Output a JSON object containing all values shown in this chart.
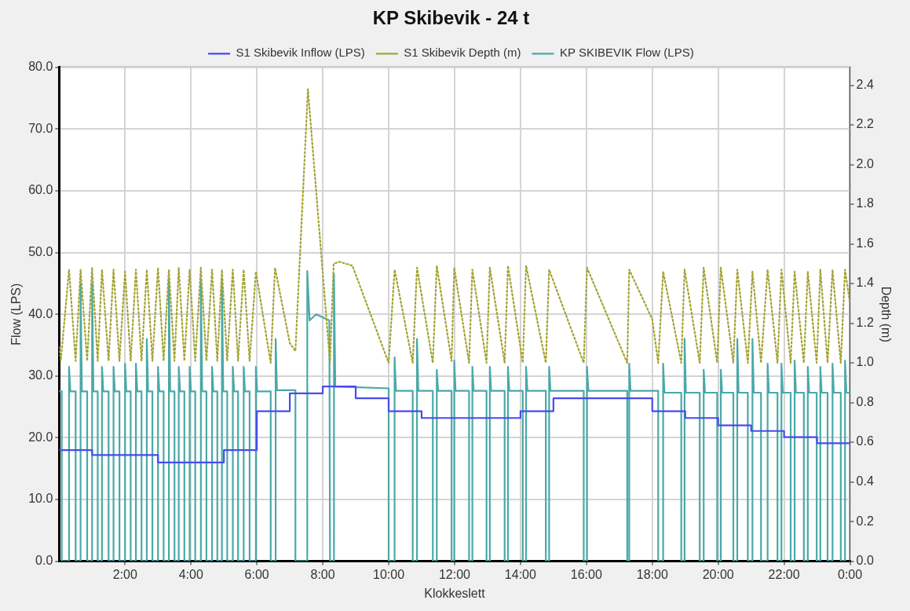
{
  "chart_data": {
    "type": "line",
    "title": "KP Skibevik - 24 t",
    "xlabel": "Klokkeslett",
    "ylabel": "Flow (LPS)",
    "y2label": "Depth (m)",
    "xlim": [
      0,
      24
    ],
    "xticks": [
      {
        "value": 2,
        "label": "2:00"
      },
      {
        "value": 4,
        "label": "4:00"
      },
      {
        "value": 6,
        "label": "6:00"
      },
      {
        "value": 8,
        "label": "8:00"
      },
      {
        "value": 10,
        "label": "10:00"
      },
      {
        "value": 12,
        "label": "12:00"
      },
      {
        "value": 14,
        "label": "14:00"
      },
      {
        "value": 16,
        "label": "16:00"
      },
      {
        "value": 18,
        "label": "18:00"
      },
      {
        "value": 20,
        "label": "20:00"
      },
      {
        "value": 22,
        "label": "22:00"
      },
      {
        "value": 24,
        "label": "0:00"
      }
    ],
    "ylim": [
      0,
      80
    ],
    "yticks": [
      {
        "value": 0,
        "label": "0.0"
      },
      {
        "value": 10,
        "label": "10.0"
      },
      {
        "value": 20,
        "label": "20.0"
      },
      {
        "value": 30,
        "label": "30.0"
      },
      {
        "value": 40,
        "label": "40.0"
      },
      {
        "value": 50,
        "label": "50.0"
      },
      {
        "value": 60,
        "label": "60.0"
      },
      {
        "value": 70,
        "label": "70.0"
      },
      {
        "value": 80,
        "label": "80.0"
      }
    ],
    "y2lim": [
      0,
      2.49
    ],
    "y2ticks": [
      {
        "value": 0,
        "label": "0.0"
      },
      0.2,
      0.4,
      0.6,
      0.8,
      {
        "value": 1,
        "label": "1.0"
      },
      1.2,
      1.4,
      1.6,
      1.8,
      {
        "value": 2,
        "label": "2.0"
      },
      2.2,
      2.4
    ],
    "grid": true,
    "legend": "top",
    "marker": "none",
    "series": [
      {
        "name": "S1 Skibevik Inflow (LPS)",
        "type": "step",
        "color": "#4a4af0",
        "x": [
          0,
          1,
          3,
          5,
          6,
          7,
          8,
          9,
          10,
          11,
          14,
          15,
          18,
          19,
          20,
          21,
          22,
          23,
          24
        ],
        "values": [
          18.0,
          17.2,
          16.0,
          18.0,
          24.3,
          27.2,
          28.3,
          26.4,
          24.3,
          23.2,
          24.3,
          26.4,
          24.3,
          23.2,
          22.0,
          21.1,
          20.1,
          19.1,
          19.1
        ]
      },
      {
        "name": "S1 Skibevik Depth (m)",
        "type": "line",
        "axis": "y2",
        "line_style": "dotted",
        "color": "#a3a335",
        "x": [
          0,
          0.05,
          0.3,
          0.5,
          0.65,
          0.85,
          1.0,
          1.17,
          1.3,
          1.5,
          1.65,
          1.83,
          2.0,
          2.17,
          2.33,
          2.5,
          2.66,
          2.83,
          3.0,
          3.17,
          3.33,
          3.5,
          3.63,
          3.8,
          3.96,
          4.13,
          4.3,
          4.47,
          4.64,
          4.8,
          4.94,
          5.1,
          5.27,
          5.43,
          5.6,
          5.78,
          5.97,
          6.42,
          6.55,
          7.0,
          7.17,
          7.55,
          8.22,
          8.33,
          8.5,
          8.9,
          10.0,
          10.18,
          10.73,
          10.86,
          11.34,
          11.46,
          11.91,
          11.99,
          12.44,
          12.54,
          12.97,
          13.07,
          13.52,
          13.62,
          14.07,
          14.17,
          14.77,
          14.87,
          15.92,
          16.02,
          17.24,
          17.3,
          18.0,
          18.18,
          18.33,
          18.88,
          18.98,
          19.44,
          19.56,
          19.97,
          20.08,
          20.46,
          20.58,
          20.9,
          21.04,
          21.3,
          21.5,
          21.8,
          21.92,
          22.2,
          22.32,
          22.6,
          22.72,
          22.99,
          23.1,
          23.32,
          23.47,
          23.72,
          23.85,
          24
        ],
        "values": [
          1.08,
          1.01,
          1.47,
          1.01,
          1.47,
          1.01,
          1.48,
          1.01,
          1.47,
          1.01,
          1.47,
          1.01,
          1.46,
          1.01,
          1.47,
          1.01,
          1.47,
          1.01,
          1.48,
          1.01,
          1.47,
          1.01,
          1.48,
          1.01,
          1.47,
          1.01,
          1.48,
          1.01,
          1.47,
          1.01,
          1.47,
          1.01,
          1.47,
          1.01,
          1.47,
          1.01,
          1.46,
          1.0,
          1.48,
          1.1,
          1.06,
          2.38,
          1.0,
          1.5,
          1.51,
          1.49,
          1.0,
          1.47,
          1.0,
          1.48,
          1.0,
          1.49,
          1.01,
          1.48,
          1.0,
          1.47,
          1.0,
          1.48,
          1.0,
          1.49,
          1.0,
          1.49,
          1.0,
          1.47,
          1.0,
          1.48,
          1.0,
          1.47,
          1.22,
          1.0,
          1.46,
          1.0,
          1.47,
          1.0,
          1.48,
          1.0,
          1.48,
          1.0,
          1.47,
          1.0,
          1.46,
          1.0,
          1.47,
          1.0,
          1.47,
          1.0,
          1.46,
          1.0,
          1.46,
          1.0,
          1.47,
          1.0,
          1.47,
          1.0,
          1.47,
          1.3
        ]
      },
      {
        "name": "KP SKIBEVIK Flow (LPS)",
        "type": "line",
        "color": "#4aa8a8",
        "x": [
          0,
          0.08,
          0.08,
          0.3,
          0.3,
          0.34,
          0.5,
          0.5,
          0.65,
          0.65,
          0.69,
          0.85,
          0.85,
          1.0,
          1.0,
          1.04,
          1.17,
          1.17,
          1.3,
          1.3,
          1.34,
          1.5,
          1.5,
          1.65,
          1.65,
          1.69,
          1.83,
          1.83,
          2.0,
          2.0,
          2.04,
          2.17,
          2.17,
          2.33,
          2.33,
          2.37,
          2.5,
          2.5,
          2.66,
          2.66,
          2.7,
          2.83,
          2.83,
          3.0,
          3.0,
          3.04,
          3.17,
          3.17,
          3.33,
          3.33,
          3.37,
          3.5,
          3.5,
          3.63,
          3.63,
          3.67,
          3.8,
          3.8,
          3.96,
          3.96,
          4.0,
          4.13,
          4.13,
          4.3,
          4.3,
          4.34,
          4.47,
          4.47,
          4.64,
          4.64,
          4.68,
          4.8,
          4.8,
          4.94,
          4.94,
          4.98,
          5.1,
          5.1,
          5.27,
          5.27,
          5.31,
          5.43,
          5.43,
          5.6,
          5.6,
          5.64,
          5.78,
          5.78,
          5.97,
          5.97,
          6.01,
          6.42,
          6.42,
          6.57,
          6.57,
          6.61,
          7.17,
          7.17,
          7.53,
          7.53,
          7.6,
          7.8,
          8.2,
          8.22,
          8.34,
          8.34,
          8.38,
          10.0,
          10.0,
          10.18,
          10.18,
          10.22,
          10.73,
          10.73,
          10.86,
          10.86,
          10.9,
          11.34,
          11.34,
          11.46,
          11.46,
          11.5,
          11.91,
          11.91,
          11.99,
          11.99,
          12.03,
          12.44,
          12.44,
          12.54,
          12.54,
          12.58,
          12.97,
          12.97,
          13.07,
          13.07,
          13.11,
          13.52,
          13.52,
          13.62,
          13.62,
          13.66,
          14.07,
          14.07,
          14.17,
          14.17,
          14.21,
          14.77,
          14.77,
          14.87,
          14.87,
          14.91,
          15.92,
          15.92,
          16.02,
          16.02,
          16.06,
          17.24,
          17.24,
          17.3,
          17.3,
          17.34,
          18.18,
          18.18,
          18.33,
          18.33,
          18.37,
          18.88,
          18.88,
          18.98,
          18.98,
          19.02,
          19.44,
          19.44,
          19.56,
          19.56,
          19.6,
          19.97,
          19.97,
          20.08,
          20.08,
          20.12,
          20.46,
          20.46,
          20.58,
          20.58,
          20.62,
          20.9,
          20.9,
          21.04,
          21.04,
          21.08,
          21.3,
          21.3,
          21.5,
          21.5,
          21.54,
          21.8,
          21.8,
          21.92,
          21.92,
          21.96,
          22.2,
          22.2,
          22.32,
          22.32,
          22.36,
          22.6,
          22.6,
          22.72,
          22.72,
          22.76,
          22.99,
          22.99,
          23.1,
          23.1,
          23.14,
          23.32,
          23.32,
          23.47,
          23.47,
          23.51,
          23.72,
          23.72,
          23.85,
          23.85,
          23.89,
          24
        ],
        "values": [
          27.5,
          27.5,
          0,
          0,
          31.5,
          27.5,
          27.5,
          0,
          0,
          45,
          27.5,
          27.5,
          0,
          0,
          45,
          27.5,
          27.5,
          0,
          0,
          31.5,
          27.5,
          27.5,
          0,
          0,
          31.5,
          27.5,
          27.5,
          0,
          0,
          32,
          27.5,
          27.5,
          0,
          0,
          32,
          27.5,
          27.5,
          0,
          0,
          36,
          27.5,
          27.5,
          0,
          0,
          31.5,
          27.5,
          27.5,
          0,
          0,
          45.5,
          27.5,
          27.5,
          0,
          0,
          31.5,
          27.5,
          27.5,
          0,
          0,
          31.5,
          27.5,
          27.5,
          0,
          0,
          45.5,
          27.5,
          27.5,
          0,
          0,
          31.5,
          27.5,
          27.5,
          0,
          0,
          45.5,
          27.5,
          27.5,
          0,
          0,
          31.5,
          27.5,
          27.5,
          0,
          0,
          31.5,
          27.5,
          27.5,
          0,
          0,
          31.5,
          27.5,
          27.5,
          0,
          0,
          36,
          27.7,
          27.7,
          0,
          0,
          47,
          39,
          40,
          39,
          0,
          0,
          46.5,
          28.3,
          28,
          0,
          0,
          33,
          27.6,
          27.6,
          0,
          0,
          36,
          27.6,
          27.6,
          0,
          0,
          31,
          27.6,
          27.6,
          0,
          0,
          32.5,
          27.6,
          27.6,
          0,
          0,
          31.5,
          27.6,
          27.6,
          0,
          0,
          31.5,
          27.6,
          27.6,
          0,
          0,
          31.5,
          27.6,
          27.6,
          0,
          0,
          31.5,
          27.6,
          27.6,
          0,
          0,
          31.5,
          27.6,
          27.6,
          0,
          0,
          31.5,
          27.6,
          27.6,
          0,
          0,
          32,
          27.6,
          27.6,
          0,
          0,
          32,
          27.3,
          27.3,
          0,
          0,
          36,
          27.3,
          27.3,
          0,
          0,
          31,
          27.3,
          27.3,
          0,
          0,
          31,
          27.3,
          27.3,
          0,
          0,
          36,
          27.3,
          27.3,
          0,
          0,
          36,
          27.3,
          27.3,
          0,
          0,
          32,
          27.3,
          27.3,
          0,
          0,
          32,
          27.3,
          27.3,
          0,
          0,
          32.5,
          27.3,
          27.3,
          0,
          0,
          31.5,
          27.3,
          27.3,
          0,
          0,
          31.5,
          27.3,
          27.3,
          0,
          0,
          32,
          27.3,
          27.3,
          0,
          0,
          32.5,
          27.3,
          27.3
        ]
      }
    ]
  }
}
